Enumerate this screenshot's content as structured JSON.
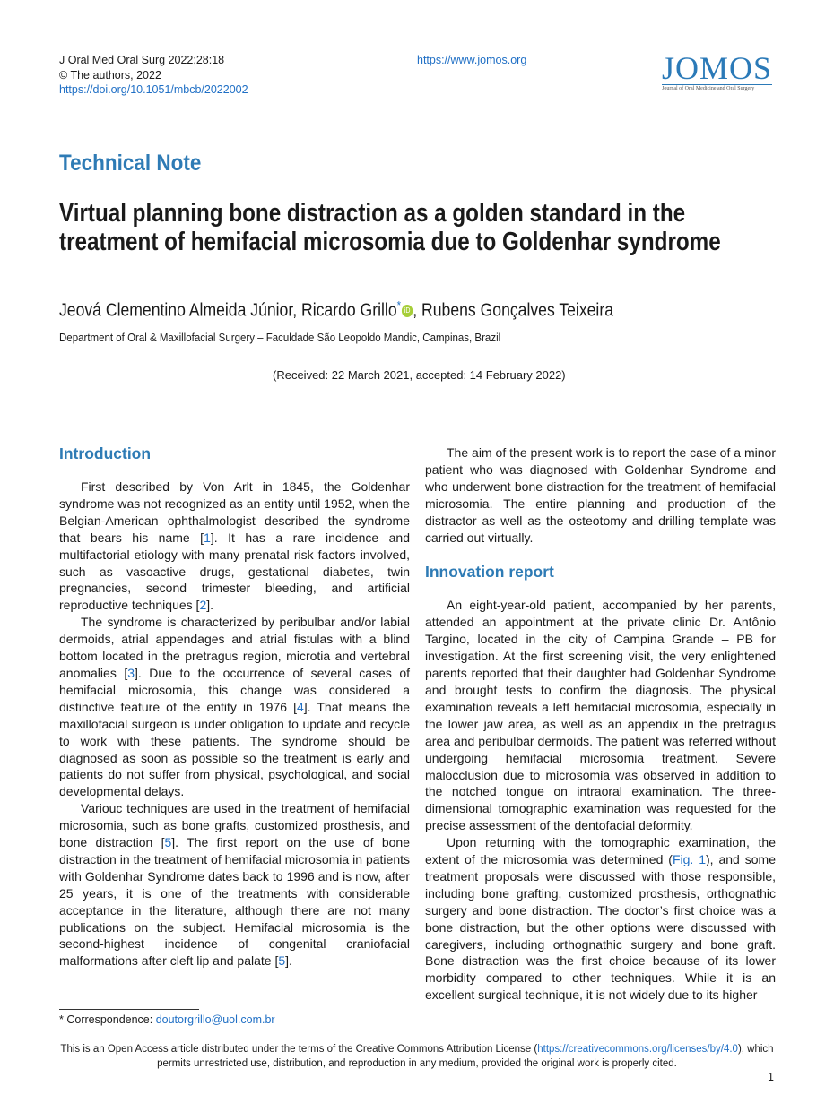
{
  "header": {
    "citation": "J Oral Med Oral Surg 2022;28:18",
    "copyright": "© The authors, 2022",
    "doi": "https://doi.org/10.1051/mbcb/2022002",
    "url": "https://www.jomos.org",
    "logo": "JOMOS",
    "logo_subtitle": "Journal of Oral Medicine and Oral Surgery"
  },
  "article": {
    "type": "Technical Note",
    "title": "Virtual planning bone distraction as a golden standard in the treatment of hemifacial microsomia due to Goldenhar syndrome",
    "authors": [
      "Jeová Clementino Almeida Júnior, Ricardo Grillo",
      "*",
      ", Rubens Gonçalves Teixeira"
    ],
    "affiliation": "Department of Oral & Maxillofacial Surgery – Faculdade São Leopoldo Mandic, Campinas, Brazil",
    "received": "(Received: 22 March 2021, accepted: 14 February 2022)"
  },
  "left_column": [
    {
      "heading": "Introduction"
    },
    {
      "paragraph": [
        "First described by Von Arlt in 1845, the Goldenhar syndrome was not recognized as an entity until 1952, when the Belgian-American ophthalmologist described the syndrome that bears his name [",
        "1",
        "]. It has a rare incidence and multifactorial etiology with many prenatal risk factors involved, such as vasoactive drugs, gestational diabetes, twin pregnancies, second trimester bleeding, and artificial reproductive techniques [",
        "2",
        "]."
      ]
    },
    {
      "paragraph": [
        "The syndrome is characterized by peribulbar and/or labial dermoids, atrial appendages and atrial fistulas with a blind bottom located in the pretragus region, microtia and vertebral anomalies [",
        "3",
        "]. Due to the occurrence of several cases of hemifacial microsomia, this change was considered a distinctive feature of the entity in 1976 [",
        "4",
        "]. That means the maxillofacial surgeon is under obligation to update and recycle to work with these patients. The syndrome should be diagnosed as soon as possible so the treatment is early and patients do not suffer from physical, psychological, and social developmental delays."
      ]
    },
    {
      "paragraph": [
        "Variouc techniques are used in the treatment of hemifacial microsomia, such as bone grafts, customized prosthesis, and bone distraction [",
        "5",
        "]. The first report on the use of bone distraction in the treatment of hemifacial microsomia in patients with Goldenhar Syndrome dates back to 1996 and is now, after 25 years, it is one of the treatments with considerable acceptance in the literature, although there are not many publications on the subject. Hemifacial microsomia is the second-highest incidence of congenital craniofacial malformations after cleft lip and palate [",
        "5",
        "]."
      ]
    }
  ],
  "right_column": [
    {
      "paragraph": [
        "The aim of the present work is to report the case of a minor patient who was diagnosed with Goldenhar Syndrome and who underwent bone distraction for the treatment of hemifacial microsomia. The entire planning and production of the distractor as well as the osteotomy and drilling template was carried out virtually."
      ]
    },
    {
      "heading": "Innovation report"
    },
    {
      "paragraph": [
        "An eight-year-old patient, accompanied by her parents, attended an appointment at the private clinic Dr. Antônio Targino, located in the city of Campina Grande – PB for investigation. At the first screening visit, the very enlightened parents reported that their daughter had Goldenhar Syndrome and brought tests to confirm the diagnosis. The physical examination reveals a left hemifacial microsomia, especially in the lower jaw area, as well as an appendix in the pretragus area and peribulbar dermoids. The patient was referred without undergoing hemifacial microsomia treatment. Severe malocclusion due to microsomia was observed in addition to the notched tongue on intraoral examination. The three-dimensional tomographic examination was requested for the precise assessment of the dentofacial deformity."
      ]
    },
    {
      "paragraph": [
        "Upon returning with the tomographic examination, the extent of the microsomia was determined (",
        "Fig. 1",
        "), and some treatment proposals were discussed with those responsible, including bone grafting, customized prosthesis, orthognathic surgery and bone distraction. The doctor’s first choice was a bone distraction, but the other options were discussed with caregivers, including orthognathic surgery and bone graft. Bone distraction was the first choice because of its lower morbidity compared to other techniques. While it is an excellent surgical technique, it is not widely due to its higher"
      ]
    }
  ],
  "footnote": [
    "* Correspondence: ",
    "doutorgrillo@uol.com.br"
  ],
  "license": [
    "This is an Open Access article distributed under the terms of the Creative Commons Attribution License (",
    "https://creativecommons.org/licenses/by/4.0",
    "), which permits unrestricted use, distribution, and reproduction in any medium, provided the original work is properly cited."
  ],
  "page_number": "1"
}
